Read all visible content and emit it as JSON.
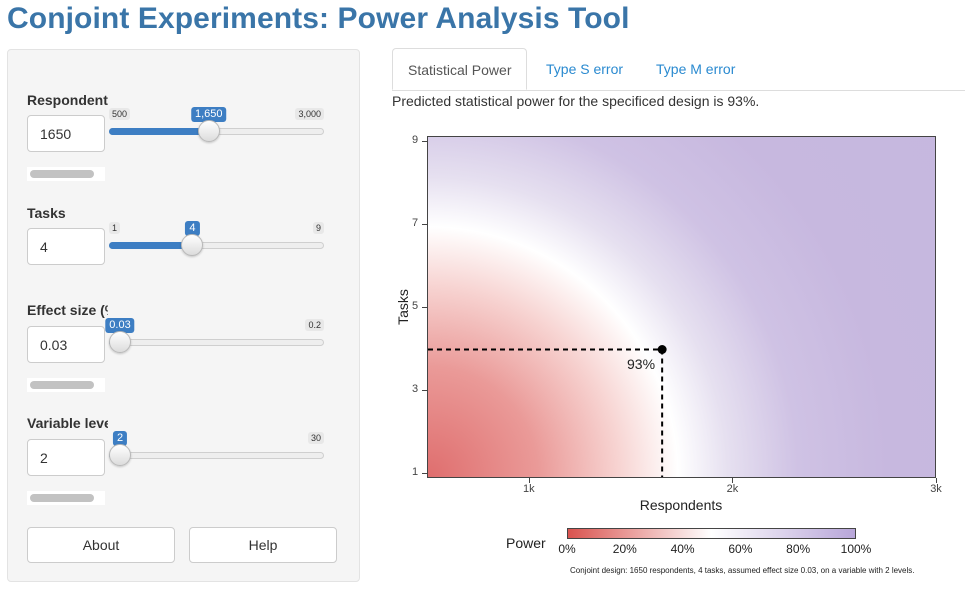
{
  "app": {
    "title": "Conjoint Experiments: Power Analysis Tool"
  },
  "sidebar": {
    "respondents": {
      "label": "Respondents",
      "value": "1650",
      "min": "500",
      "max": "3,000",
      "current": "1,650",
      "fraction": 0.46
    },
    "tasks": {
      "label": "Tasks",
      "value": "4",
      "min": "1",
      "max": "9",
      "current": "4",
      "fraction": 0.375
    },
    "effect_size": {
      "label": "Effect size (%)",
      "value": "0.03",
      "min": "0.03",
      "max": "0.2",
      "current": "0.03",
      "fraction": 0.0
    },
    "levels": {
      "label": "Variable levels",
      "value": "2",
      "min": "2",
      "max": "30",
      "current": "2",
      "fraction": 0.0
    },
    "buttons": {
      "about": "About",
      "help": "Help"
    }
  },
  "tabs": [
    {
      "label": "Statistical Power",
      "active": true
    },
    {
      "label": "Type S error",
      "active": false
    },
    {
      "label": "Type M error",
      "active": false
    }
  ],
  "summary": "Predicted statistical power for the specificed design is 93%.",
  "chart_data": {
    "type": "heatmap",
    "xlabel": "Respondents",
    "ylabel": "Tasks",
    "xlim": [
      500,
      3000
    ],
    "ylim": [
      1,
      9
    ],
    "x_ticks": [
      "1k",
      "2k",
      "3k"
    ],
    "x_tick_values": [
      1000,
      2000,
      3000
    ],
    "y_ticks": [
      "1",
      "3",
      "5",
      "7",
      "9"
    ],
    "y_tick_values": [
      1,
      3,
      5,
      7,
      9
    ],
    "marker": {
      "x": 1650,
      "y": 4,
      "label": "93%"
    },
    "legend": {
      "title": "Power",
      "ticks": [
        "0%",
        "20%",
        "40%",
        "60%",
        "80%",
        "100%"
      ],
      "colors": [
        "#d9534f",
        "#ffffff",
        "#b8a6d9"
      ]
    },
    "caption": "Conjoint design: 1650 respondents, 4 tasks, assumed effect size 0.03, on a variable with 2 levels."
  }
}
